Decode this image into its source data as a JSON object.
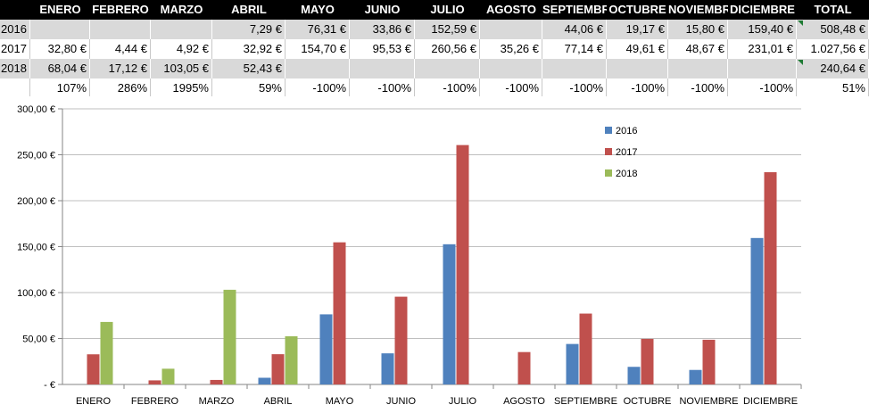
{
  "table": {
    "columns": [
      "ENERO",
      "FEBRERO",
      "MARZO",
      "ABRIL",
      "MAYO",
      "JUNIO",
      "JULIO",
      "AGOSTO",
      "SEPTIEMBRE",
      "OCTUBRE",
      "NOVIEMBRE",
      "DICIEMBRE",
      "TOTAL"
    ],
    "rows": [
      {
        "label": "2016",
        "cells": [
          "",
          "",
          "",
          "7,29 €",
          "76,31 €",
          "33,86 €",
          "152,59 €",
          "",
          "44,06 €",
          "19,17 €",
          "15,80 €",
          "159,40 €",
          "508,48 €"
        ]
      },
      {
        "label": "2017",
        "cells": [
          "32,80 €",
          "4,44 €",
          "4,92 €",
          "32,92 €",
          "154,70 €",
          "95,53 €",
          "260,56 €",
          "35,26 €",
          "77,14 €",
          "49,61 €",
          "48,67 €",
          "231,01 €",
          "1.027,56 €"
        ]
      },
      {
        "label": "2018",
        "cells": [
          "68,04 €",
          "17,12 €",
          "103,05 €",
          "52,43 €",
          "",
          "",
          "",
          "",
          "",
          "",
          "",
          "",
          "240,64 €"
        ]
      },
      {
        "label": "",
        "cells": [
          "107%",
          "286%",
          "1995%",
          "59%",
          "-100%",
          "-100%",
          "-100%",
          "-100%",
          "-100%",
          "-100%",
          "-100%",
          "-100%",
          "51%"
        ]
      }
    ]
  },
  "chart_data": {
    "type": "bar",
    "categories": [
      "ENERO",
      "FEBRERO",
      "MARZO",
      "ABRIL",
      "MAYO",
      "JUNIO",
      "JULIO",
      "AGOSTO",
      "SEPTIEMBRE",
      "OCTUBRE",
      "NOVIEMBRE",
      "DICIEMBRE"
    ],
    "series": [
      {
        "name": "2016",
        "color": "#4f81bd",
        "values": [
          0,
          0,
          0,
          7.29,
          76.31,
          33.86,
          152.59,
          0,
          44.06,
          19.17,
          15.8,
          159.4
        ]
      },
      {
        "name": "2017",
        "color": "#c0504d",
        "values": [
          32.8,
          4.44,
          4.92,
          32.92,
          154.7,
          95.53,
          260.56,
          35.26,
          77.14,
          49.61,
          48.67,
          231.01
        ]
      },
      {
        "name": "2018",
        "color": "#9bbb59",
        "values": [
          68.04,
          17.12,
          103.05,
          52.43,
          0,
          0,
          0,
          0,
          0,
          0,
          0,
          0
        ]
      }
    ],
    "ylim": [
      0,
      300
    ],
    "yticks": [
      0,
      50,
      100,
      150,
      200,
      250,
      300
    ],
    "ytick_labels": [
      " -   €",
      "50,00 €",
      "100,00 €",
      "150,00 €",
      "200,00 €",
      "250,00 €",
      "300,00 €"
    ],
    "grid": true,
    "legend_position": "top-right"
  }
}
